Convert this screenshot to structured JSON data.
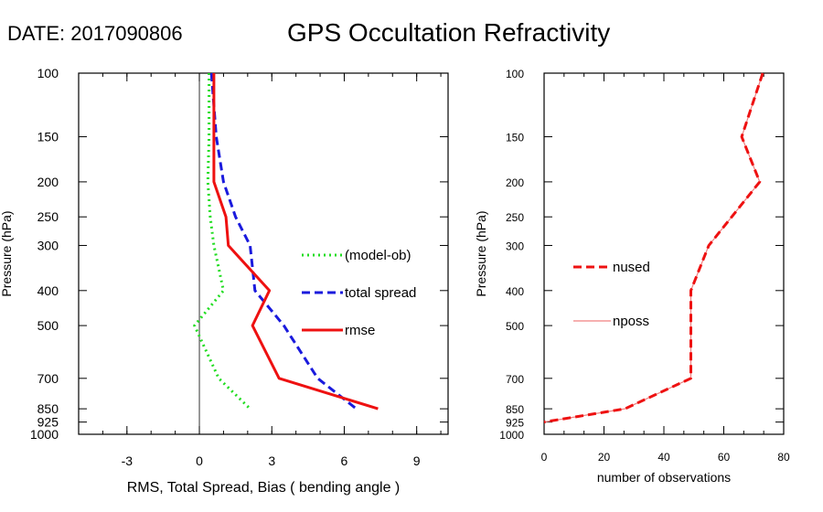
{
  "header": {
    "date_label": "DATE: 2017090806",
    "title": "GPS Occultation Refractivity"
  },
  "colors": {
    "model_ob": "#22dd22",
    "total_spread": "#1a1add",
    "rmse": "#ee1111",
    "nused": "#ee1111",
    "nposs": "#f08080"
  },
  "chart_data": [
    {
      "type": "line",
      "xlabel": "RMS, Total Spread, Bias ( bending angle )",
      "ylabel": "Pressure (hPa)",
      "xlim": [
        -5,
        10.3
      ],
      "ylim": [
        1000,
        100
      ],
      "yscale": "log",
      "xticks": [
        -3,
        0,
        3,
        6,
        9
      ],
      "yticks": [
        100,
        150,
        200,
        250,
        300,
        400,
        500,
        700,
        850,
        925,
        1000
      ],
      "legend_position": "right",
      "series": [
        {
          "name": "(model-ob)",
          "style": "dotted",
          "color": "#22dd22",
          "points": [
            [
              0.4,
              100
            ],
            [
              0.4,
              150
            ],
            [
              0.35,
              200
            ],
            [
              0.45,
              250
            ],
            [
              0.6,
              300
            ],
            [
              1.0,
              400
            ],
            [
              -0.2,
              500
            ],
            [
              0.8,
              700
            ],
            [
              2.1,
              850
            ]
          ]
        },
        {
          "name": "total spread",
          "style": "dashed",
          "color": "#1a1add",
          "points": [
            [
              0.5,
              100
            ],
            [
              0.7,
              150
            ],
            [
              1.0,
              200
            ],
            [
              1.5,
              250
            ],
            [
              2.1,
              300
            ],
            [
              2.3,
              400
            ],
            [
              3.5,
              500
            ],
            [
              4.9,
              700
            ],
            [
              6.5,
              850
            ]
          ]
        },
        {
          "name": "rmse",
          "style": "solid",
          "color": "#ee1111",
          "points": [
            [
              0.6,
              100
            ],
            [
              0.6,
              150
            ],
            [
              0.6,
              200
            ],
            [
              1.1,
              250
            ],
            [
              1.2,
              300
            ],
            [
              2.9,
              400
            ],
            [
              2.2,
              500
            ],
            [
              3.3,
              700
            ],
            [
              7.4,
              850
            ]
          ]
        }
      ]
    },
    {
      "type": "line",
      "xlabel": "number of observations",
      "ylabel": "Pressure (hPa)",
      "xlim": [
        0,
        80
      ],
      "ylim": [
        1000,
        100
      ],
      "yscale": "log",
      "xticks": [
        0,
        20,
        40,
        60,
        80
      ],
      "yticks": [
        100,
        150,
        200,
        250,
        300,
        400,
        500,
        700,
        850,
        925,
        1000
      ],
      "legend_position": "left",
      "series": [
        {
          "name": "nused",
          "style": "dashed",
          "color": "#ee1111",
          "points": [
            [
              73,
              100
            ],
            [
              66,
              150
            ],
            [
              72,
              200
            ],
            [
              55,
              300
            ],
            [
              49,
              400
            ],
            [
              49,
              500
            ],
            [
              49,
              700
            ],
            [
              27,
              850
            ],
            [
              0,
              925
            ]
          ]
        },
        {
          "name": "nposs",
          "style": "solid",
          "color": "#f08080",
          "points": [
            [
              73,
              100
            ],
            [
              66,
              150
            ],
            [
              72,
              200
            ],
            [
              55,
              300
            ],
            [
              49,
              400
            ],
            [
              49,
              500
            ],
            [
              49,
              700
            ],
            [
              27,
              850
            ],
            [
              0,
              925
            ]
          ]
        }
      ]
    }
  ]
}
